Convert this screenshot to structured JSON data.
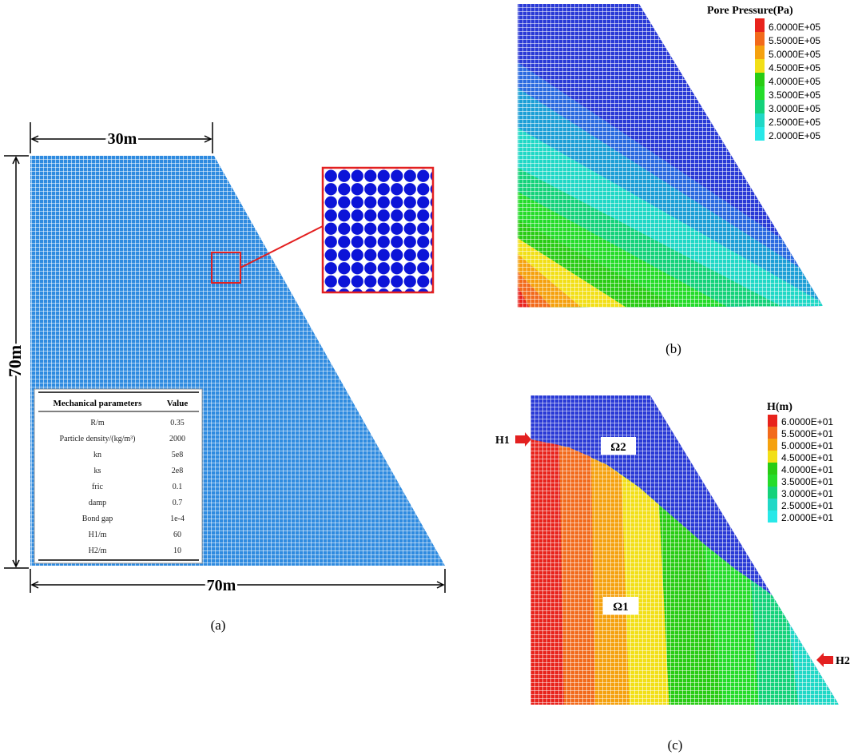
{
  "panel_a": {
    "top_width_label": "30m",
    "height_label": "70m",
    "bottom_width_label": "70m",
    "caption": "(a)",
    "params_table": {
      "headers": [
        "Mechanical parameters",
        "Value"
      ],
      "rows": [
        {
          "name": "R/m",
          "value": "0.35"
        },
        {
          "name": "Particle density/(kg/m³)",
          "value": "2000"
        },
        {
          "name": "kn",
          "value": "5e8"
        },
        {
          "name": "ks",
          "value": "2e8"
        },
        {
          "name": "fric",
          "value": "0.1"
        },
        {
          "name": "damp",
          "value": "0.7"
        },
        {
          "name": "Bond gap",
          "value": "1e-4"
        },
        {
          "name": "H1/m",
          "value": "60"
        },
        {
          "name": "H2/m",
          "value": "10"
        }
      ]
    }
  },
  "panel_b": {
    "legend_title": "Pore Pressure(Pa)",
    "legend_labels": [
      "6.0000E+05",
      "5.5000E+05",
      "5.0000E+05",
      "4.5000E+05",
      "4.0000E+05",
      "3.5000E+05",
      "3.0000E+05",
      "2.5000E+05",
      "2.0000E+05"
    ],
    "caption": "(b)"
  },
  "panel_c": {
    "legend_title": "H(m)",
    "legend_labels": [
      "6.0000E+01",
      "5.5000E+01",
      "5.0000E+01",
      "4.5000E+01",
      "4.0000E+01",
      "3.5000E+01",
      "3.0000E+01",
      "2.5000E+01",
      "2.0000E+01"
    ],
    "region_upper": "Ω2",
    "region_lower": "Ω1",
    "h1_label": "H1",
    "h2_label": "H2",
    "caption": "(c)"
  },
  "colors": {
    "band_scale": [
      "#e8231c",
      "#f26a1b",
      "#f5a10e",
      "#f2df17",
      "#29cc14",
      "#25dc2a",
      "#14d27a",
      "#20d8c6",
      "#28e8e8"
    ],
    "dam_blue": "#2f8be0",
    "top_region_blue": "#2a3ad6",
    "zoom_blue": "#0c14d8",
    "zoom_border": "#e32020"
  }
}
